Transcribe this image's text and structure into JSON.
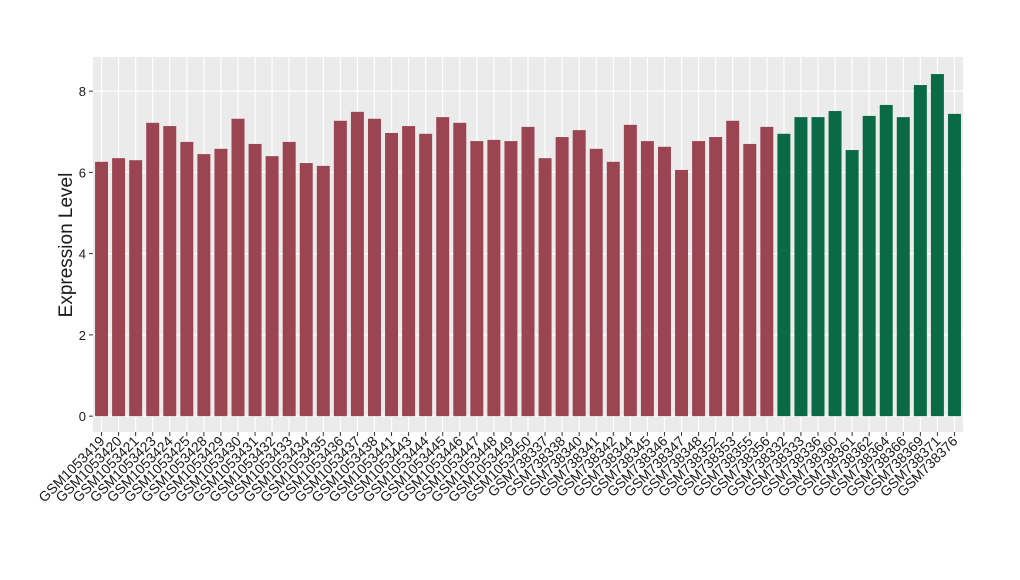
{
  "chart_data": {
    "type": "bar",
    "y_label": "Expression Level",
    "categories": [
      "GSM1053419",
      "GSM1053420",
      "GSM1053421",
      "GSM1053423",
      "GSM1053424",
      "GSM1053425",
      "GSM1053428",
      "GSM1053429",
      "GSM1053430",
      "GSM1053431",
      "GSM1053432",
      "GSM1053433",
      "GSM1053434",
      "GSM1053435",
      "GSM1053436",
      "GSM1053437",
      "GSM1053438",
      "GSM1053441",
      "GSM1053443",
      "GSM1053444",
      "GSM1053445",
      "GSM1053446",
      "GSM1053447",
      "GSM1053448",
      "GSM1053449",
      "GSM1053450",
      "GSM738337",
      "GSM738338",
      "GSM738340",
      "GSM738341",
      "GSM738342",
      "GSM738344",
      "GSM738345",
      "GSM738346",
      "GSM738347",
      "GSM738348",
      "GSM738352",
      "GSM738353",
      "GSM738355",
      "GSM738356",
      "GSM738332",
      "GSM738333",
      "GSM738336",
      "GSM738360",
      "GSM738361",
      "GSM738362",
      "GSM738364",
      "GSM738366",
      "GSM738369",
      "GSM738371",
      "GSM738376"
    ],
    "values": [
      6.26,
      6.35,
      6.3,
      7.22,
      7.14,
      6.75,
      6.45,
      6.58,
      7.32,
      6.7,
      6.4,
      6.75,
      6.23,
      6.16,
      7.27,
      7.49,
      7.32,
      6.97,
      7.14,
      6.95,
      7.36,
      7.22,
      6.77,
      6.8,
      6.77,
      7.12,
      6.35,
      6.87,
      7.04,
      6.58,
      6.26,
      7.17,
      6.77,
      6.63,
      6.06,
      6.77,
      6.87,
      7.27,
      6.7,
      7.12,
      6.95,
      7.36,
      7.36,
      7.51,
      6.55,
      7.39,
      7.66,
      7.36,
      8.15,
      8.42,
      7.44
    ],
    "colors": [
      "#9b4452",
      "#9b4452",
      "#9b4452",
      "#9b4452",
      "#9b4452",
      "#9b4452",
      "#9b4452",
      "#9b4452",
      "#9b4452",
      "#9b4452",
      "#9b4452",
      "#9b4452",
      "#9b4452",
      "#9b4452",
      "#9b4452",
      "#9b4452",
      "#9b4452",
      "#9b4452",
      "#9b4452",
      "#9b4452",
      "#9b4452",
      "#9b4452",
      "#9b4452",
      "#9b4452",
      "#9b4452",
      "#9b4452",
      "#9b4452",
      "#9b4452",
      "#9b4452",
      "#9b4452",
      "#9b4452",
      "#9b4452",
      "#9b4452",
      "#9b4452",
      "#9b4452",
      "#9b4452",
      "#9b4452",
      "#9b4452",
      "#9b4452",
      "#9b4452",
      "#0a6a45",
      "#0a6a45",
      "#0a6a45",
      "#0a6a45",
      "#0a6a45",
      "#0a6a45",
      "#0a6a45",
      "#0a6a45",
      "#0a6a45",
      "#0a6a45",
      "#0a6a45"
    ],
    "ylim": [
      -0.39,
      8.84
    ],
    "yticks": [
      0,
      2,
      4,
      6,
      8
    ],
    "grid": true
  }
}
